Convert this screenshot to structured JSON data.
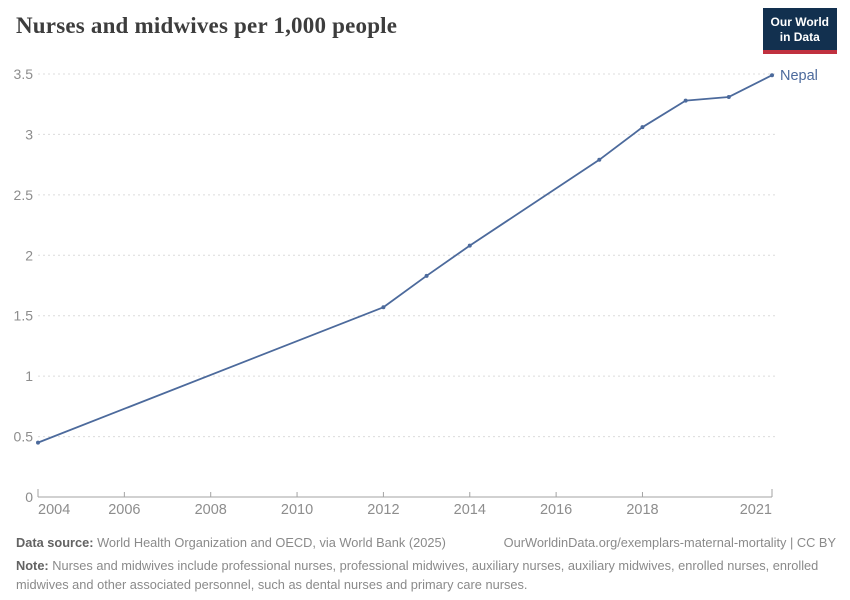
{
  "header": {
    "title": "Nurses and midwives per 1,000 people",
    "logo_line1": "Our World",
    "logo_line2": "in Data"
  },
  "chart_data": {
    "type": "line",
    "title": "Nurses and midwives per 1,000 people",
    "xlabel": "",
    "ylabel": "",
    "xlim": [
      2004,
      2021
    ],
    "ylim": [
      0,
      3.5
    ],
    "grid": "horizontal-dashed",
    "legend_position": "end-of-line",
    "x_ticks": [
      2004,
      2006,
      2008,
      2010,
      2012,
      2014,
      2016,
      2018,
      2021
    ],
    "y_ticks": [
      0,
      0.5,
      1,
      1.5,
      2,
      2.5,
      3,
      3.5
    ],
    "series": [
      {
        "name": "Nepal",
        "color": "#4C6A9C",
        "points": [
          [
            2004,
            0.45
          ],
          [
            2012,
            1.57
          ],
          [
            2013,
            1.83
          ],
          [
            2014,
            2.08
          ],
          [
            2017,
            2.79
          ],
          [
            2018,
            3.06
          ],
          [
            2019,
            3.28
          ],
          [
            2020,
            3.31
          ],
          [
            2021,
            3.49
          ]
        ]
      }
    ]
  },
  "footer": {
    "datasource_label": "Data source:",
    "datasource_text": " World Health Organization and OECD, via World Bank (2025)",
    "cite_link": "OurWorldinData.org/exemplars-maternal-mortality | CC BY",
    "note_label": "Note:",
    "note_text": " Nurses and midwives include professional nurses, professional midwives, auxiliary nurses, auxiliary midwives, enrolled nurses, enrolled midwives and other associated personnel, such as dental nurses and primary care nurses."
  },
  "colors": {
    "line": "#4C6A9C",
    "grid": "#dcdcdc",
    "axis": "#a3a3a3",
    "tick_label": "#8d8d8d",
    "title": "#3d3d3d",
    "footer_text": "#8a8a8a",
    "logo_bg": "#12304f",
    "logo_red": "#c0313f"
  }
}
